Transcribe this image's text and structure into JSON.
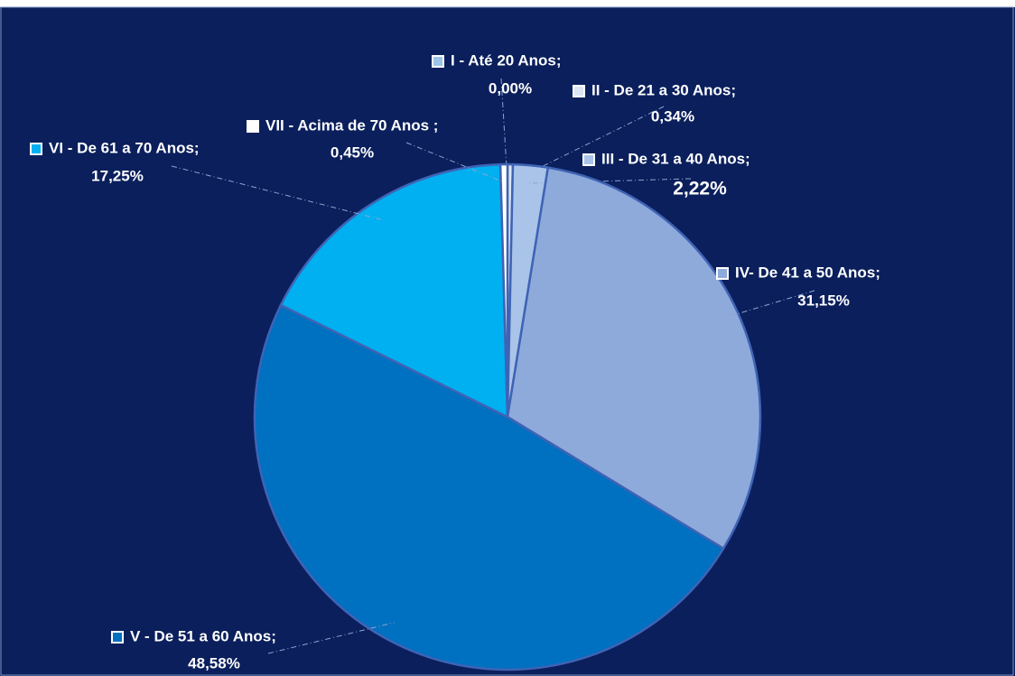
{
  "chart_data": {
    "type": "pie",
    "categories": [
      "I - Até 20 Anos;",
      "II - De 21 a 30 Anos;",
      "III - De 31 a 40 Anos;",
      "IV- De 41 a 50 Anos;",
      "V - De 51 a  60 Anos;",
      "VI - De 61 a  70 Anos;",
      "VII - Acima de 70 Anos ;"
    ],
    "values": [
      0,
      0.34,
      2.22,
      31.15,
      48.58,
      17.25,
      0.45
    ],
    "value_labels": [
      "0,00%",
      "0,34%",
      "2,22%",
      "31,15%",
      "48,58%",
      "17,25%",
      "0,45%"
    ],
    "colors": [
      "#9dc3e6",
      "#dce6f2",
      "#a9c4e8",
      "#8eaadb",
      "#0070c0",
      "#00b0f0",
      "#ffffff"
    ]
  }
}
